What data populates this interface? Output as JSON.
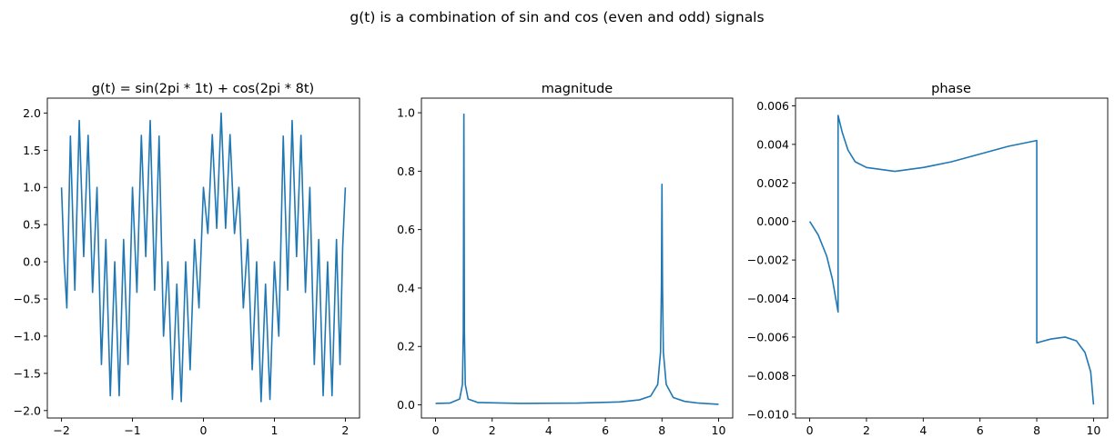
{
  "figure": {
    "suptitle": "g(t) is a combination of sin and cos (even and odd) signals"
  },
  "chart_data": [
    {
      "type": "line",
      "title": "g(t) = sin(2pi * 1t) + cos(2pi * 8t)",
      "xlabel": "",
      "ylabel": "",
      "xlim": [
        -2.2,
        2.2
      ],
      "ylim": [
        -2.1,
        2.2
      ],
      "xticks": [
        -2,
        -1,
        0,
        1,
        2
      ],
      "xtick_labels": [
        "−2",
        "−1",
        "0",
        "1",
        "2"
      ],
      "yticks": [
        -2.0,
        -1.5,
        -1.0,
        -0.5,
        0.0,
        0.5,
        1.0,
        1.5,
        2.0
      ],
      "ytick_labels": [
        "−2.0",
        "−1.5",
        "−1.0",
        "−0.5",
        "0.0",
        "0.5",
        "1.0",
        "1.5",
        "2.0"
      ],
      "color": "#1f77b4",
      "series": [
        {
          "x": [
            -2.0,
            -1.9625,
            -1.925,
            -1.875,
            -1.8125,
            -1.75,
            -1.6875,
            -1.625,
            -1.5625,
            -1.5,
            -1.4375,
            -1.375,
            -1.3125,
            -1.25,
            -1.1875,
            -1.125,
            -1.0625,
            -1.0,
            -0.9375,
            -0.875,
            -0.8125,
            -0.75,
            -0.6875,
            -0.625,
            -0.5625,
            -0.5,
            -0.4375,
            -0.375,
            -0.3125,
            -0.25,
            -0.1875,
            -0.125,
            -0.0625,
            0.0,
            0.0625,
            0.125,
            0.1875,
            0.25,
            0.3125,
            0.375,
            0.4375,
            0.5,
            0.5625,
            0.625,
            0.6875,
            0.75,
            0.8125,
            0.875,
            0.9375,
            1.0,
            1.0625,
            1.125,
            1.1875,
            1.25,
            1.3125,
            1.375,
            1.4375,
            1.5,
            1.5625,
            1.625,
            1.6875,
            1.75,
            1.8125,
            1.875,
            1.925,
            1.9625,
            2.0
          ],
          "y": [
            1.0,
            0.0,
            -0.62,
            1.69,
            -0.38,
            1.9,
            0.07,
            1.7,
            -0.41,
            1.0,
            -1.38,
            0.3,
            -1.8,
            0.0,
            -1.8,
            0.3,
            -1.38,
            1.0,
            -0.41,
            1.7,
            0.07,
            1.9,
            -0.38,
            1.69,
            -1.0,
            0.0,
            -1.85,
            -0.3,
            -1.88,
            0.0,
            -1.45,
            0.3,
            -0.62,
            1.0,
            0.38,
            1.71,
            0.45,
            2.0,
            0.45,
            1.71,
            0.38,
            1.0,
            -0.62,
            0.3,
            -1.45,
            0.0,
            -1.88,
            -0.3,
            -1.85,
            0.0,
            -1.0,
            1.69,
            -0.38,
            1.9,
            0.07,
            1.7,
            -0.41,
            1.0,
            -1.38,
            0.3,
            -1.8,
            0.0,
            -1.8,
            0.3,
            -1.38,
            0.2,
            1.0
          ]
        }
      ]
    },
    {
      "type": "line",
      "title": "magnitude",
      "xlabel": "",
      "ylabel": "",
      "xlim": [
        -0.5,
        10.5
      ],
      "ylim": [
        -0.045,
        1.05
      ],
      "xticks": [
        0,
        2,
        4,
        6,
        8,
        10
      ],
      "xtick_labels": [
        "0",
        "2",
        "4",
        "6",
        "8",
        "10"
      ],
      "yticks": [
        0.0,
        0.2,
        0.4,
        0.6,
        0.8,
        1.0
      ],
      "ytick_labels": [
        "0.0",
        "0.2",
        "0.4",
        "0.6",
        "0.8",
        "1.0"
      ],
      "color": "#1f77b4",
      "series": [
        {
          "x": [
            0.0,
            0.5,
            0.85,
            0.95,
            0.98,
            1.0,
            1.02,
            1.05,
            1.15,
            1.5,
            3.0,
            5.0,
            6.5,
            7.2,
            7.6,
            7.85,
            7.95,
            7.98,
            8.0,
            8.02,
            8.05,
            8.15,
            8.4,
            8.8,
            9.3,
            10.0
          ],
          "y": [
            0.005,
            0.006,
            0.02,
            0.07,
            0.25,
            0.995,
            0.25,
            0.07,
            0.02,
            0.008,
            0.005,
            0.006,
            0.01,
            0.017,
            0.03,
            0.07,
            0.18,
            0.4,
            0.755,
            0.4,
            0.18,
            0.07,
            0.025,
            0.012,
            0.006,
            0.002
          ]
        }
      ]
    },
    {
      "type": "line",
      "title": "phase",
      "xlabel": "",
      "ylabel": "",
      "xlim": [
        -0.5,
        10.5
      ],
      "ylim": [
        -0.0102,
        0.0064
      ],
      "xticks": [
        0,
        2,
        4,
        6,
        8,
        10
      ],
      "xtick_labels": [
        "0",
        "2",
        "4",
        "6",
        "8",
        "10"
      ],
      "yticks": [
        -0.01,
        -0.008,
        -0.006,
        -0.004,
        -0.002,
        0.0,
        0.002,
        0.004,
        0.006
      ],
      "ytick_labels": [
        "−0.010",
        "−0.008",
        "−0.006",
        "−0.004",
        "−0.002",
        "0.000",
        "0.002",
        "0.004",
        "0.006"
      ],
      "color": "#1f77b4",
      "series": [
        {
          "x": [
            0.0,
            0.3,
            0.6,
            0.8,
            1.0,
            1.0,
            1.15,
            1.35,
            1.6,
            2.0,
            2.5,
            3.0,
            4.0,
            5.0,
            6.0,
            7.0,
            8.0,
            8.0,
            8.5,
            9.0,
            9.4,
            9.7,
            9.9,
            10.0
          ],
          "y": [
            0.0,
            -0.0007,
            -0.0018,
            -0.003,
            -0.0047,
            0.0055,
            0.0046,
            0.0037,
            0.0031,
            0.0028,
            0.0027,
            0.0026,
            0.0028,
            0.0031,
            0.0035,
            0.0039,
            0.0042,
            -0.0063,
            -0.0061,
            -0.006,
            -0.0062,
            -0.0068,
            -0.0078,
            -0.0095
          ]
        }
      ]
    }
  ]
}
